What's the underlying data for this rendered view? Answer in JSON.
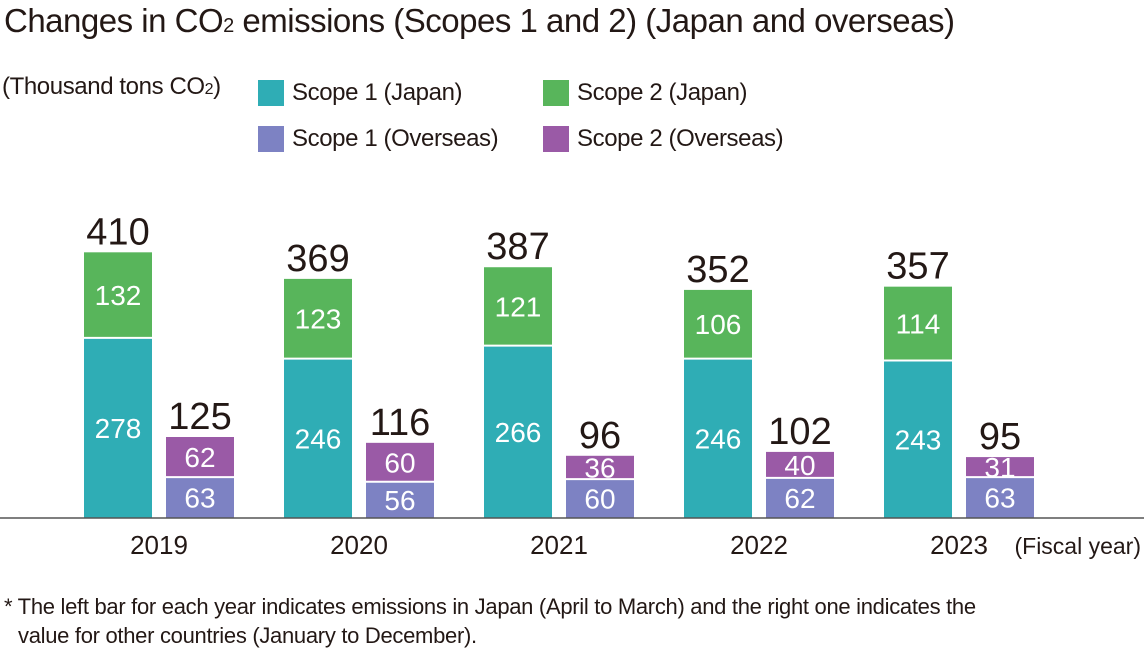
{
  "chart_data": {
    "type": "bar",
    "title_prefix": "Changes in CO",
    "title_subscript": "2",
    "title_suffix": " emissions (Scopes 1 and 2) (Japan and overseas)",
    "unit_prefix": "(Thousand tons CO",
    "unit_subscript": "2",
    "unit_suffix": ")",
    "x_axis_unit": "(Fiscal year)",
    "categories": [
      "2019",
      "2020",
      "2021",
      "2022",
      "2023"
    ],
    "series": [
      {
        "name": "Scope 1 (Japan)",
        "stack": "Japan",
        "color": "#2fadb5",
        "values": [
          278,
          246,
          266,
          246,
          243
        ]
      },
      {
        "name": "Scope 2 (Japan)",
        "stack": "Japan",
        "color": "#58b55b",
        "values": [
          132,
          123,
          121,
          106,
          114
        ]
      },
      {
        "name": "Scope 1 (Overseas)",
        "stack": "Overseas",
        "color": "#7d82c3",
        "values": [
          63,
          56,
          60,
          62,
          63
        ]
      },
      {
        "name": "Scope 2 (Overseas)",
        "stack": "Overseas",
        "color": "#9a5aa6",
        "values": [
          62,
          60,
          36,
          40,
          31
        ]
      }
    ],
    "totals": {
      "Japan": [
        410,
        369,
        387,
        352,
        357
      ],
      "Overseas": [
        125,
        116,
        96,
        102,
        95
      ]
    },
    "ylim": [
      0,
      410
    ],
    "grid": false,
    "legend_position": "top"
  },
  "footnote": {
    "line1": "* The left bar for each year indicates emissions in Japan (April to March) and the right one indicates the",
    "line2": "value for other countries (January to December)."
  }
}
